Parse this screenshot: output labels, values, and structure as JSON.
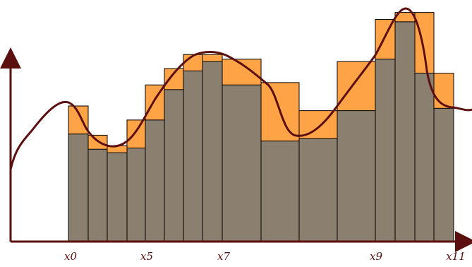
{
  "colors": {
    "upper_bar": "#ffa347",
    "lower_bar": "#8b7f6f",
    "curve": "#5b0f0f",
    "axis": "#5b0f0f",
    "bar_outline": "#000000"
  },
  "chart_data": {
    "type": "bar",
    "ylim": [
      0,
      100
    ],
    "intervals": [
      {
        "lower": 46,
        "upper": 58
      },
      {
        "lower": 39.5,
        "upper": 45.5
      },
      {
        "lower": 38,
        "upper": 41
      },
      {
        "lower": 40,
        "upper": 52
      },
      {
        "lower": 52,
        "upper": 67
      },
      {
        "lower": 65,
        "upper": 74
      },
      {
        "lower": 73,
        "upper": 80
      },
      {
        "lower": 77,
        "upper": 80
      },
      {
        "lower": 67,
        "upper": 78
      },
      {
        "lower": 43,
        "upper": 68
      },
      {
        "lower": 44,
        "upper": 56
      },
      {
        "lower": 56,
        "upper": 77
      },
      {
        "lower": 78,
        "upper": 95
      },
      {
        "lower": 94,
        "upper": 98
      },
      {
        "lower": 72,
        "upper": 98
      },
      {
        "lower": 57,
        "upper": 72
      }
    ],
    "tick_labels": [
      "x0",
      "x5",
      "x7",
      "x9",
      "x11"
    ]
  }
}
